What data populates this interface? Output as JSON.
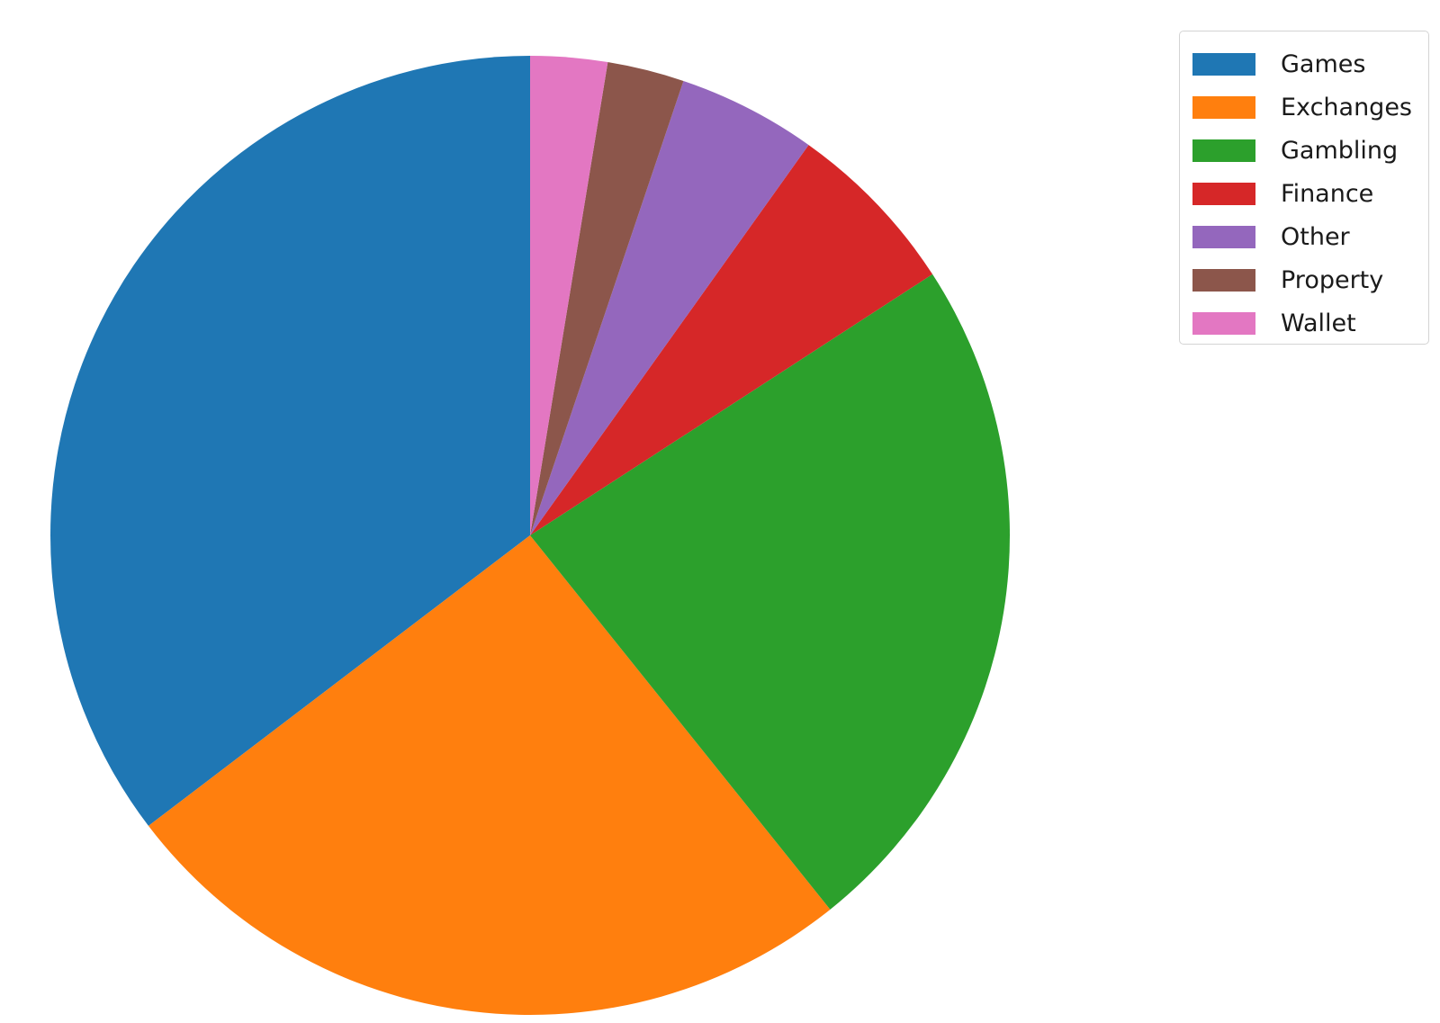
{
  "chart_data": {
    "type": "pie",
    "title": "",
    "categories": [
      "Games",
      "Exchanges",
      "Gambling",
      "Finance",
      "Other",
      "Property",
      "Wallet"
    ],
    "values": [
      35.5,
      25.5,
      23.5,
      6.0,
      4.7,
      2.6,
      2.6
    ],
    "colors": [
      "#1f77b4",
      "#ff7f0e",
      "#2ca02c",
      "#d62728",
      "#9467bd",
      "#8c564b",
      "#e377c2"
    ],
    "start_angle_deg": 90,
    "direction": "counterclockwise",
    "legend_position": "top-right"
  }
}
